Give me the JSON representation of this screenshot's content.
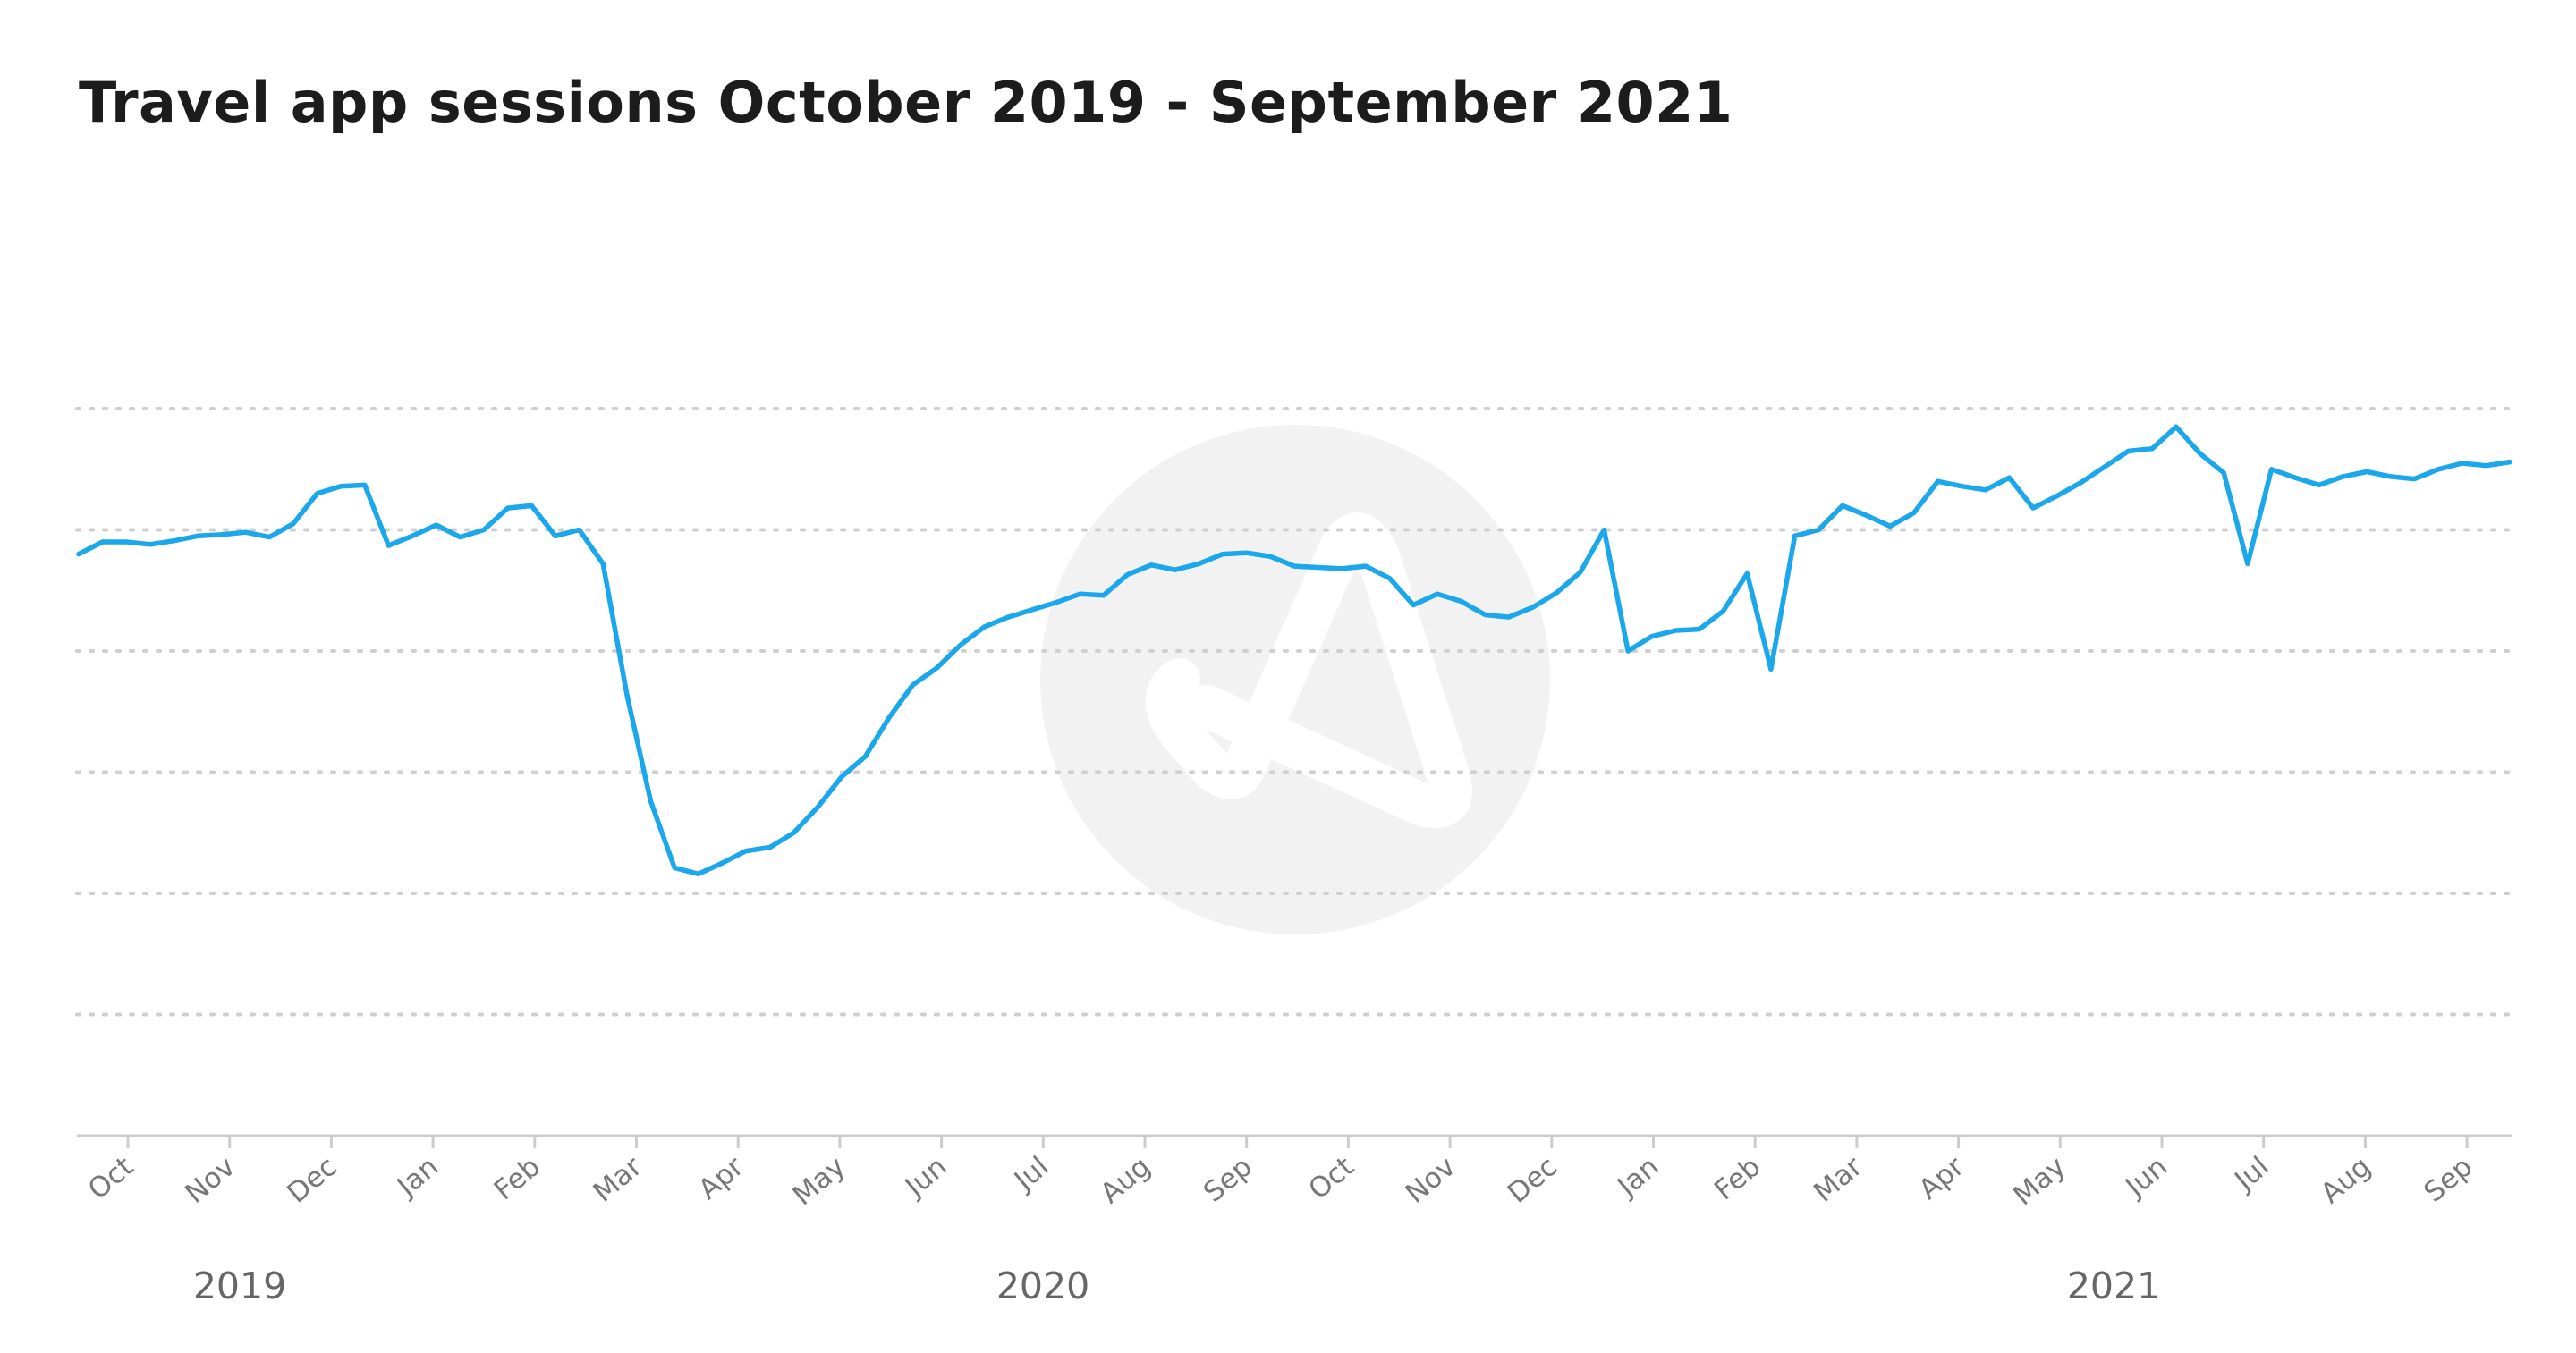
{
  "chart_data": {
    "type": "line",
    "title": "Travel app sessions October 2019 - September 2021",
    "xlabel": "",
    "ylabel": "",
    "ylim": [
      0,
      7
    ],
    "grid": true,
    "y_grid_lines": [
      1,
      2,
      3,
      4,
      5,
      6
    ],
    "x_axis_months": [
      "Oct",
      "Nov",
      "Dec",
      "Jan",
      "Feb",
      "Mar",
      "Apr",
      "May",
      "Jun",
      "Jul",
      "Aug",
      "Sep",
      "Oct",
      "Nov",
      "Dec",
      "Jan",
      "Feb",
      "Mar",
      "Apr",
      "May",
      "Jun",
      "Jul",
      "Aug",
      "Sep"
    ],
    "x_axis_years": [
      "2019",
      "2020",
      "2021"
    ],
    "colors": {
      "line": "#1aa7ec",
      "watermark": "#f2f2f2"
    },
    "watermark_icon": "data-ai-logo-icon",
    "series": [
      {
        "values": [
          4.8,
          4.9,
          4.9,
          4.88,
          4.91,
          4.95,
          4.96,
          4.98,
          4.94,
          5.05,
          5.3,
          5.36,
          5.37,
          4.87,
          4.95,
          5.04,
          4.94,
          5.0,
          5.18,
          5.2,
          4.95,
          5.0,
          4.72,
          3.64,
          2.76,
          2.21,
          2.16,
          2.25,
          2.35,
          2.38,
          2.5,
          2.71,
          2.96,
          3.13,
          3.45,
          3.72,
          3.86,
          4.05,
          4.2,
          4.28,
          4.34,
          4.4,
          4.47,
          4.46,
          4.63,
          4.71,
          4.67,
          4.72,
          4.8,
          4.81,
          4.78,
          4.7,
          4.69,
          4.68,
          4.7,
          4.6,
          4.38,
          4.47,
          4.41,
          4.3,
          4.28,
          4.36,
          4.48,
          4.65,
          5.0,
          4.0,
          4.12,
          4.17,
          4.18,
          4.33,
          4.64,
          3.85,
          4.95,
          5.0,
          5.2,
          5.12,
          5.03,
          5.14,
          5.4,
          5.36,
          5.33,
          5.43,
          5.18,
          5.28,
          5.39,
          5.52,
          5.65,
          5.67,
          5.85,
          5.63,
          5.47,
          4.72,
          5.5,
          5.43,
          5.37,
          5.44,
          5.48,
          5.44,
          5.42,
          5.5,
          5.55,
          5.53,
          5.56
        ]
      }
    ]
  }
}
